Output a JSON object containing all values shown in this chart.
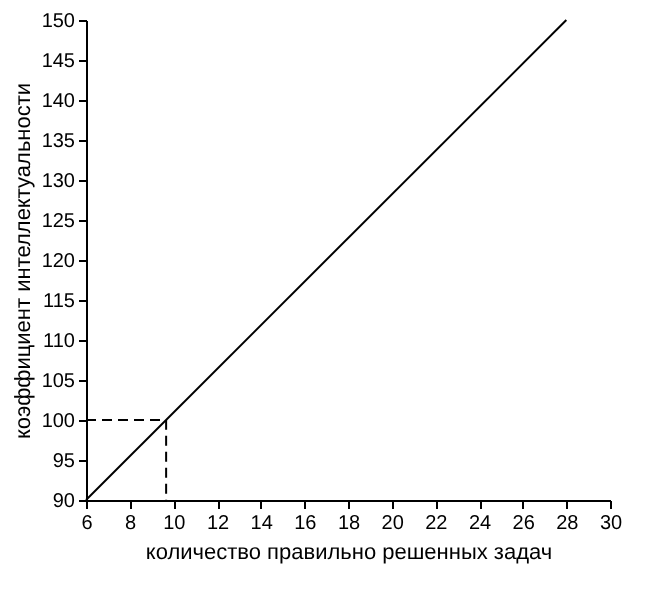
{
  "chart_data": {
    "type": "line",
    "xlabel": "количество  правильно  решенных  задач",
    "ylabel": "коэффициент  интеллектуальности",
    "series": [
      {
        "color": "#000000",
        "x": [
          6,
          28
        ],
        "values": [
          90,
          150
        ],
        "line_style": "solid"
      },
      {
        "color": "#000000",
        "x": [
          6,
          9.67,
          9.67
        ],
        "values": [
          100,
          100,
          90
        ],
        "line_style": "dashed"
      }
    ],
    "xlim": [
      6,
      30
    ],
    "xticks": [
      6,
      8,
      10,
      12,
      14,
      16,
      18,
      20,
      22,
      24,
      26,
      28,
      30
    ],
    "ylim": [
      90,
      150
    ],
    "yticks": [
      90,
      95,
      100,
      105,
      110,
      115,
      120,
      125,
      130,
      135,
      140,
      145,
      150
    ],
    "grid": false,
    "legend": false,
    "marker": "none"
  }
}
